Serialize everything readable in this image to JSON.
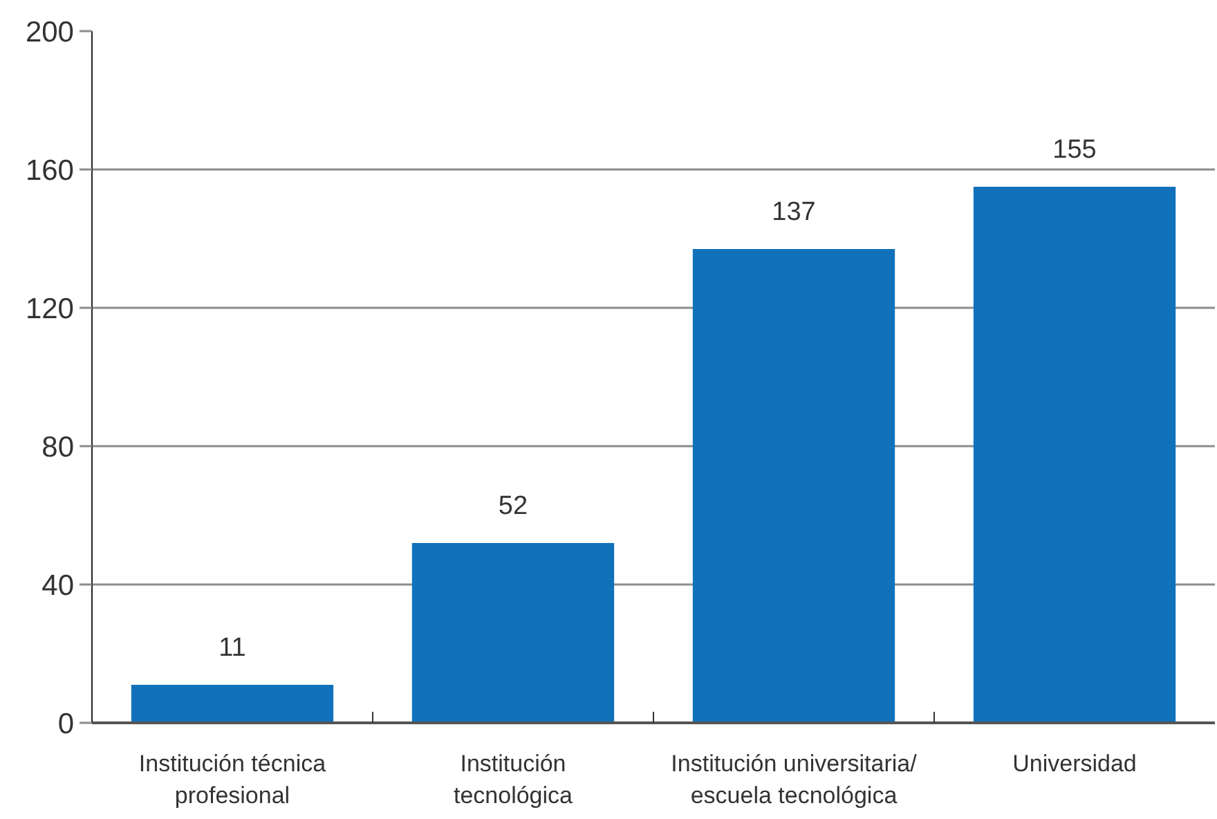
{
  "chart_data": {
    "type": "bar",
    "categories": [
      "Institución técnica\nprofesional",
      "Institución\ntecnológica",
      "Institución universitaria/\nescuela tecnológica",
      "Universidad"
    ],
    "values": [
      11,
      52,
      137,
      155
    ],
    "color": "#1172bb",
    "ylim": [
      0,
      200
    ],
    "yticks": [
      0,
      40,
      80,
      120,
      160,
      200
    ],
    "grid": "y",
    "data_labels": true
  }
}
